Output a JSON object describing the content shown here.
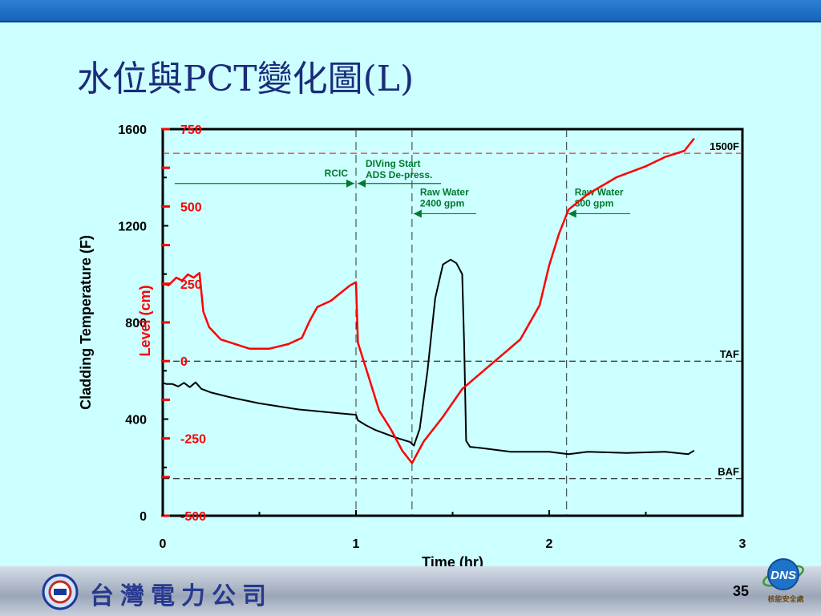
{
  "slide": {
    "title": "水位與PCT變化圖(L)",
    "company": "台灣電力公司",
    "page_number": "35",
    "logo_text": "DNS",
    "logo_subtext": "核能安全處"
  },
  "colors": {
    "temperature": "#000000",
    "level": "#ff0000",
    "annotation": "#007a2e",
    "title": "#1a2b7a"
  },
  "chart_data": {
    "type": "line",
    "xlabel": "Time (hr)",
    "ylabel": "Cladding Temperature (F)",
    "ylabel2": "Level (cm)",
    "xlim": [
      0,
      3
    ],
    "ylim": [
      0,
      1600
    ],
    "y2lim": [
      -500,
      750
    ],
    "x_ticks": [
      "0",
      "1",
      "2",
      "3"
    ],
    "y_ticks": [
      "0",
      "400",
      "800",
      "1200",
      "1600"
    ],
    "y2_ticks": [
      "-500",
      "-250",
      "0",
      "250",
      "500",
      "750"
    ],
    "grid": false,
    "reference_lines": [
      {
        "label": "1500F",
        "axis": "y",
        "value": 1500,
        "color": "#ff0000"
      },
      {
        "label": "TAF",
        "axis": "y2",
        "value": 0,
        "color": "#000000"
      },
      {
        "label": "BAF",
        "axis": "y2",
        "value": -380,
        "color": "#000000"
      }
    ],
    "event_lines": [
      1.0,
      1.29,
      2.09
    ],
    "annotations": [
      {
        "text": "RCIC",
        "x": 1.0,
        "y": 1375,
        "arrow": "right"
      },
      {
        "text": [
          "DIVing Start",
          "ADS De-press."
        ],
        "x": 1.0,
        "y": 1375,
        "arrow": "left"
      },
      {
        "text": [
          "Raw Water",
          "2400 gpm"
        ],
        "x": 1.29,
        "y": 1250,
        "arrow": "left"
      },
      {
        "text": [
          "Raw Water",
          "800 gpm"
        ],
        "x": 2.09,
        "y": 1250,
        "arrow": "left"
      }
    ],
    "series": [
      {
        "name": "Cladding Temperature",
        "axis": "y",
        "x": [
          0,
          0.02,
          0.05,
          0.08,
          0.11,
          0.14,
          0.17,
          0.2,
          0.25,
          0.35,
          0.5,
          0.7,
          0.9,
          1.0,
          1.01,
          1.05,
          1.1,
          1.2,
          1.28,
          1.3,
          1.33,
          1.37,
          1.41,
          1.45,
          1.49,
          1.52,
          1.55,
          1.56,
          1.57,
          1.59,
          1.65,
          1.8,
          2.0,
          2.1,
          2.2,
          2.4,
          2.6,
          2.72,
          2.75
        ],
        "y": [
          550,
          545,
          545,
          535,
          550,
          532,
          552,
          525,
          510,
          490,
          465,
          440,
          425,
          418,
          395,
          375,
          355,
          325,
          305,
          290,
          360,
          600,
          900,
          1040,
          1060,
          1045,
          1000,
          700,
          310,
          285,
          280,
          265,
          265,
          255,
          265,
          260,
          265,
          255,
          270
        ]
      },
      {
        "name": "Level",
        "axis": "y2",
        "x": [
          0,
          0.03,
          0.07,
          0.1,
          0.13,
          0.16,
          0.19,
          0.21,
          0.24,
          0.27,
          0.3,
          0.35,
          0.45,
          0.55,
          0.65,
          0.72,
          0.76,
          0.8,
          0.87,
          0.93,
          0.97,
          1.0,
          1.01,
          1.03,
          1.07,
          1.12,
          1.18,
          1.24,
          1.29,
          1.35,
          1.45,
          1.55,
          1.7,
          1.85,
          1.95,
          2.0,
          2.05,
          2.1,
          2.2,
          2.35,
          2.5,
          2.6,
          2.7,
          2.75
        ],
        "y": [
          250,
          245,
          270,
          260,
          280,
          270,
          285,
          160,
          110,
          90,
          70,
          60,
          40,
          40,
          55,
          75,
          130,
          175,
          195,
          225,
          245,
          255,
          60,
          20,
          -60,
          -160,
          -220,
          -290,
          -330,
          -260,
          -180,
          -90,
          -10,
          70,
          180,
          310,
          410,
          490,
          540,
          595,
          630,
          660,
          680,
          720
        ]
      }
    ]
  }
}
